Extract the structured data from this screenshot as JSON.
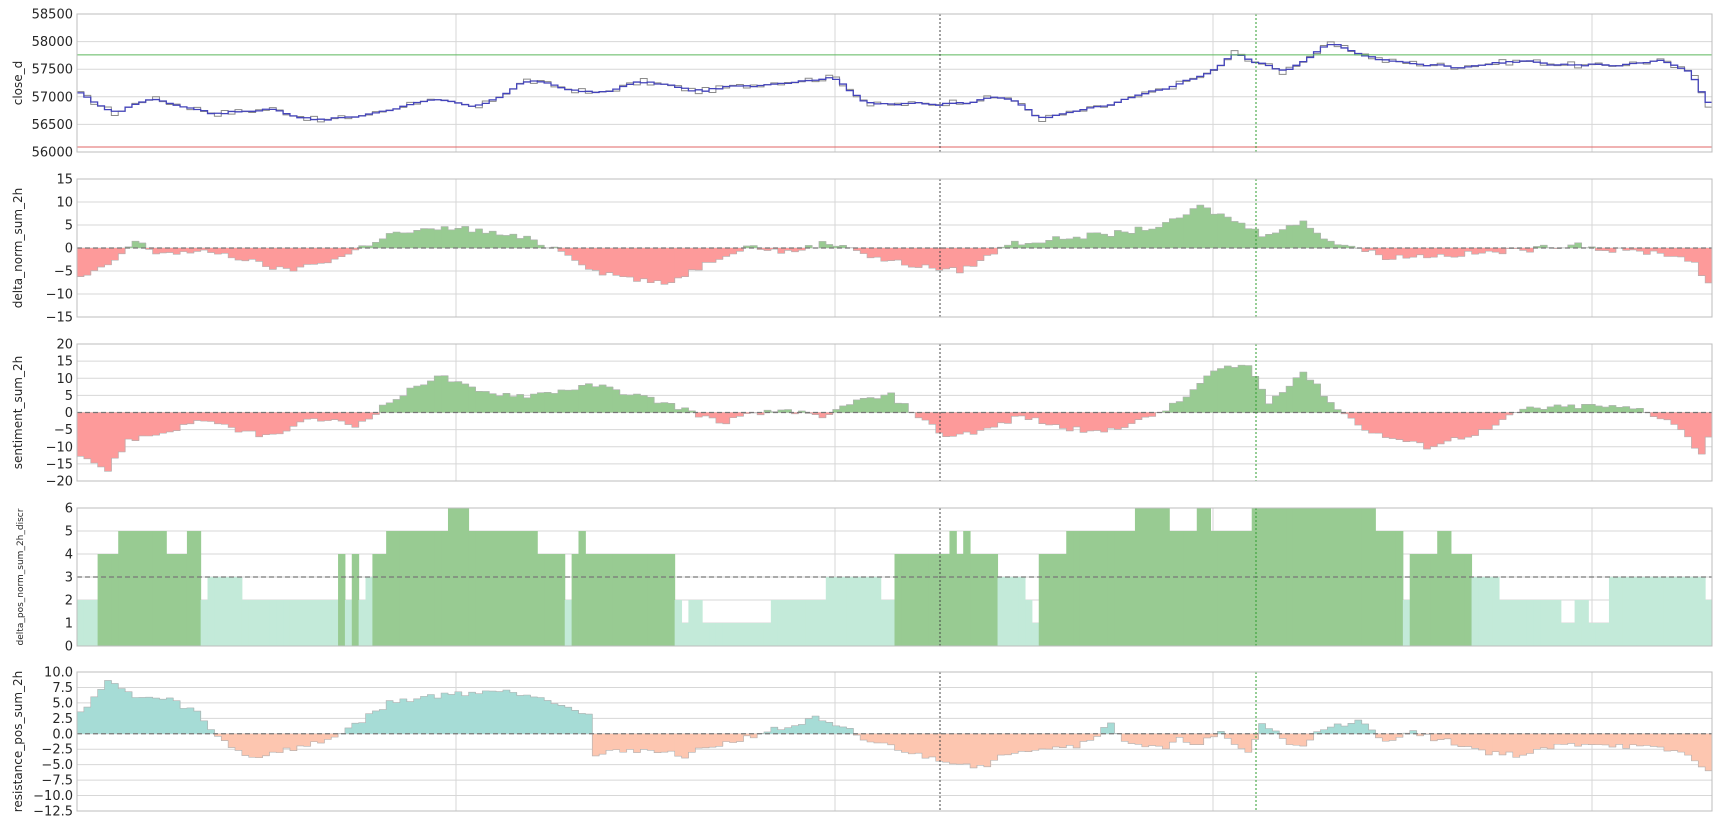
{
  "colors": {
    "grid": "#d7d7d7",
    "frame": "#bdbdbd",
    "price_line": "#4444bb",
    "raw_line": "#8a8a8a",
    "upper_level": "#5cb85c",
    "lower_level": "#e06666",
    "pos_fill": "#98cb92",
    "neg_fill": "#fd9a9a",
    "disc_high": "#98cb92",
    "disc_low": "#c3ead9",
    "res_pos": "#a6dcd6",
    "res_neg": "#fdc6b0",
    "marker_black": "#444444",
    "marker_green": "#2e9e2e",
    "zero_line": "#777777"
  },
  "chart_data": [
    {
      "type": "line",
      "ylabel": "close_d",
      "ylim": [
        56000,
        58500
      ],
      "yticks": [
        56000,
        56500,
        57000,
        57500,
        58000,
        58500
      ],
      "ytick_labels": [
        "56000",
        "56500",
        "57000",
        "57500",
        "58000",
        "58500"
      ],
      "hlines": [
        {
          "value": 57760,
          "color": "upper_level"
        },
        {
          "value": 56090,
          "color": "lower_level"
        }
      ],
      "anchors": [
        [
          0,
          57050
        ],
        [
          5,
          56700
        ],
        [
          10,
          56980
        ],
        [
          20,
          56700
        ],
        [
          28,
          56780
        ],
        [
          35,
          56560
        ],
        [
          43,
          56700
        ],
        [
          50,
          56950
        ],
        [
          58,
          56800
        ],
        [
          65,
          57300
        ],
        [
          75,
          57050
        ],
        [
          82,
          57280
        ],
        [
          90,
          57100
        ],
        [
          100,
          57250
        ],
        [
          110,
          57350
        ],
        [
          115,
          56850
        ],
        [
          125,
          56880
        ],
        [
          135,
          57000
        ],
        [
          140,
          56600
        ],
        [
          150,
          56850
        ],
        [
          158,
          57150
        ],
        [
          165,
          57450
        ],
        [
          168,
          57800
        ],
        [
          175,
          57450
        ],
        [
          182,
          57950
        ],
        [
          190,
          57650
        ],
        [
          200,
          57550
        ],
        [
          210,
          57650
        ],
        [
          220,
          57550
        ],
        [
          230,
          57650
        ],
        [
          235,
          57400
        ],
        [
          237,
          56850
        ]
      ]
    },
    {
      "type": "bar",
      "ylabel": "delta_norm_sum_2h",
      "ylim": [
        -15,
        15
      ],
      "yticks": [
        -15,
        -10,
        -5,
        0,
        5,
        10,
        15
      ],
      "ytick_labels": [
        "−15",
        "−10",
        "−5",
        "0",
        "5",
        "10",
        "15"
      ],
      "zero_line": 0,
      "anchors": [
        [
          0,
          -6.5
        ],
        [
          4,
          -4
        ],
        [
          8,
          1.5
        ],
        [
          11,
          -1
        ],
        [
          20,
          -1
        ],
        [
          25,
          -3
        ],
        [
          30,
          -5
        ],
        [
          38,
          -2
        ],
        [
          40,
          -0.5
        ],
        [
          45,
          3
        ],
        [
          55,
          4.5
        ],
        [
          65,
          2
        ],
        [
          70,
          -0.5
        ],
        [
          75,
          -5
        ],
        [
          85,
          -8
        ],
        [
          93,
          -2
        ],
        [
          97,
          0.5
        ],
        [
          103,
          -1
        ],
        [
          108,
          1
        ],
        [
          112,
          0.5
        ],
        [
          115,
          -2
        ],
        [
          122,
          -4
        ],
        [
          128,
          -5
        ],
        [
          132,
          -2
        ],
        [
          135,
          1
        ],
        [
          140,
          1.5
        ],
        [
          145,
          2.5
        ],
        [
          150,
          3
        ],
        [
          158,
          5
        ],
        [
          163,
          9
        ],
        [
          168,
          6
        ],
        [
          172,
          3
        ],
        [
          178,
          5.5
        ],
        [
          182,
          1.5
        ],
        [
          186,
          0
        ],
        [
          190,
          -2
        ],
        [
          200,
          -1.5
        ],
        [
          210,
          -0.5
        ],
        [
          218,
          1
        ],
        [
          222,
          -0.5
        ],
        [
          230,
          -1
        ],
        [
          235,
          -3
        ],
        [
          237,
          -8
        ]
      ]
    },
    {
      "type": "bar",
      "ylabel": "sentiment_sum_2h",
      "ylim": [
        -20,
        20
      ],
      "yticks": [
        -20,
        -15,
        -10,
        -5,
        0,
        5,
        10,
        15,
        20
      ],
      "ytick_labels": [
        "−20",
        "−15",
        "−10",
        "−5",
        "0",
        "5",
        "10",
        "15",
        "20"
      ],
      "zero_line": 0,
      "anchors": [
        [
          0,
          -12
        ],
        [
          4,
          -17
        ],
        [
          7,
          -8
        ],
        [
          12,
          -6
        ],
        [
          18,
          -2
        ],
        [
          22,
          -5
        ],
        [
          28,
          -7
        ],
        [
          32,
          -3
        ],
        [
          36,
          -2
        ],
        [
          40,
          -4
        ],
        [
          45,
          3
        ],
        [
          52,
          11
        ],
        [
          58,
          6
        ],
        [
          65,
          5
        ],
        [
          75,
          8
        ],
        [
          83,
          4
        ],
        [
          88,
          1
        ],
        [
          93,
          -3
        ],
        [
          97,
          -1
        ],
        [
          103,
          1
        ],
        [
          108,
          -2
        ],
        [
          112,
          3
        ],
        [
          118,
          5
        ],
        [
          122,
          -1
        ],
        [
          126,
          -7
        ],
        [
          132,
          -5
        ],
        [
          137,
          -1
        ],
        [
          142,
          -4
        ],
        [
          148,
          -6
        ],
        [
          155,
          -2
        ],
        [
          160,
          3
        ],
        [
          165,
          12
        ],
        [
          170,
          14
        ],
        [
          173,
          3
        ],
        [
          178,
          12
        ],
        [
          183,
          1
        ],
        [
          188,
          -6
        ],
        [
          196,
          -10
        ],
        [
          205,
          -5
        ],
        [
          210,
          1
        ],
        [
          220,
          2
        ],
        [
          227,
          1
        ],
        [
          232,
          -3
        ],
        [
          236,
          -12
        ],
        [
          237,
          -7
        ]
      ]
    },
    {
      "type": "bar",
      "ylabel": "delta_pos_norm_sum_2h_discr",
      "ylim": [
        0,
        6
      ],
      "yticks": [
        0,
        1,
        2,
        3,
        4,
        5,
        6
      ],
      "ytick_labels": [
        "0",
        "1",
        "2",
        "3",
        "4",
        "5",
        "6"
      ],
      "threshold": 3,
      "values": [
        2,
        2,
        2,
        4,
        4,
        4,
        5,
        5,
        5,
        5,
        5,
        5,
        5,
        4,
        4,
        4,
        5,
        5,
        2,
        3,
        3,
        3,
        3,
        3,
        2,
        2,
        2,
        2,
        2,
        2,
        2,
        2,
        2,
        2,
        2,
        2,
        2,
        2,
        4,
        2,
        4,
        2,
        3,
        4,
        4,
        5,
        5,
        5,
        5,
        5,
        5,
        5,
        5,
        5,
        6,
        6,
        6,
        5,
        5,
        5,
        5,
        5,
        5,
        5,
        5,
        5,
        5,
        4,
        4,
        4,
        4,
        2,
        4,
        5,
        4,
        4,
        4,
        4,
        4,
        4,
        4,
        4,
        4,
        4,
        4,
        4,
        4,
        2,
        1,
        2,
        2,
        1,
        1,
        1,
        1,
        1,
        1,
        1,
        1,
        1,
        1,
        2,
        2,
        2,
        2,
        2,
        2,
        2,
        2,
        3,
        3,
        3,
        3,
        3,
        3,
        3,
        3,
        2,
        2,
        4,
        4,
        4,
        4,
        4,
        4,
        4,
        4,
        5,
        4,
        5,
        4,
        4,
        4,
        4,
        3,
        3,
        3,
        3,
        2,
        1,
        4,
        4,
        4,
        4,
        5,
        5,
        5,
        5,
        5,
        5,
        5,
        5,
        5,
        5,
        6,
        6,
        6,
        6,
        6,
        5,
        5,
        5,
        5,
        6,
        6,
        5,
        5,
        5,
        5,
        5,
        5,
        6,
        6,
        6,
        6,
        6,
        6,
        6,
        6,
        6,
        6,
        6,
        6,
        6,
        6,
        6,
        6,
        6,
        6,
        5,
        5,
        5,
        5,
        2,
        4,
        4,
        4,
        4,
        5,
        5,
        4,
        4,
        4,
        3,
        3,
        3,
        3,
        2,
        2,
        2,
        2,
        2,
        2,
        2,
        2,
        2,
        1,
        1,
        2,
        2,
        1,
        1,
        1,
        3,
        3,
        3,
        3,
        3,
        3,
        3,
        3,
        3,
        3,
        3,
        3,
        3,
        3,
        2,
        2,
        3,
        1,
        1,
        1,
        1,
        1,
        1,
        1,
        1,
        2,
        2,
        2
      ]
    },
    {
      "type": "bar",
      "ylabel": "resistance_pos_sum_2h",
      "ylim": [
        -12.5,
        10
      ],
      "yticks": [
        -12.5,
        -10,
        -7.5,
        -5,
        -2.5,
        0,
        2.5,
        5,
        7.5,
        10
      ],
      "ytick_labels": [
        "−12.5",
        "−10.0",
        "−7.5",
        "−5.0",
        "−2.5",
        "0.0",
        "2.5",
        "5.0",
        "7.5",
        "10.0"
      ],
      "zero_line": 0,
      "anchors": [
        [
          0,
          3.5
        ],
        [
          4,
          8.5
        ],
        [
          8,
          6
        ],
        [
          13,
          5.5
        ],
        [
          17,
          3.5
        ],
        [
          19,
          0.5
        ],
        [
          22,
          -2
        ],
        [
          25,
          -4
        ],
        [
          28,
          -3
        ],
        [
          33,
          -2
        ],
        [
          36,
          -1
        ],
        [
          40,
          1.5
        ],
        [
          45,
          5
        ],
        [
          50,
          6
        ],
        [
          55,
          6.5
        ],
        [
          60,
          7
        ],
        [
          65,
          6.5
        ],
        [
          70,
          5
        ],
        [
          74,
          3
        ],
        [
          75,
          -3.5
        ],
        [
          80,
          -2.5
        ],
        [
          85,
          -3
        ],
        [
          88,
          -3.5
        ],
        [
          92,
          -2
        ],
        [
          96,
          -1
        ],
        [
          100,
          0.5
        ],
        [
          103,
          1
        ],
        [
          107,
          2.5
        ],
        [
          110,
          1
        ],
        [
          112,
          0.5
        ],
        [
          114,
          -1
        ],
        [
          118,
          -2
        ],
        [
          122,
          -3.5
        ],
        [
          127,
          -4.5
        ],
        [
          132,
          -5.5
        ],
        [
          135,
          -3
        ],
        [
          138,
          -2.5
        ],
        [
          142,
          -2
        ],
        [
          145,
          -2
        ],
        [
          148,
          0
        ],
        [
          150,
          1.5
        ],
        [
          152,
          -1
        ],
        [
          155,
          -2
        ],
        [
          158,
          -2.5
        ],
        [
          160,
          -1
        ],
        [
          163,
          -1.5
        ],
        [
          166,
          0
        ],
        [
          168,
          -2
        ],
        [
          170,
          -3
        ],
        [
          172,
          1.5
        ],
        [
          174,
          0.5
        ],
        [
          176,
          -2
        ],
        [
          178,
          -2
        ],
        [
          180,
          0.5
        ],
        [
          182,
          1.5
        ],
        [
          184,
          1
        ],
        [
          186,
          2
        ],
        [
          188,
          0.5
        ],
        [
          190,
          -1.5
        ],
        [
          193,
          0.5
        ],
        [
          196,
          -0.5
        ],
        [
          200,
          -1.5
        ],
        [
          205,
          -3
        ],
        [
          210,
          -3.5
        ],
        [
          215,
          -2
        ],
        [
          220,
          -1.5
        ],
        [
          225,
          -2
        ],
        [
          230,
          -2.5
        ],
        [
          233,
          -3
        ],
        [
          236,
          -5
        ],
        [
          237,
          -6
        ]
      ]
    }
  ]
}
